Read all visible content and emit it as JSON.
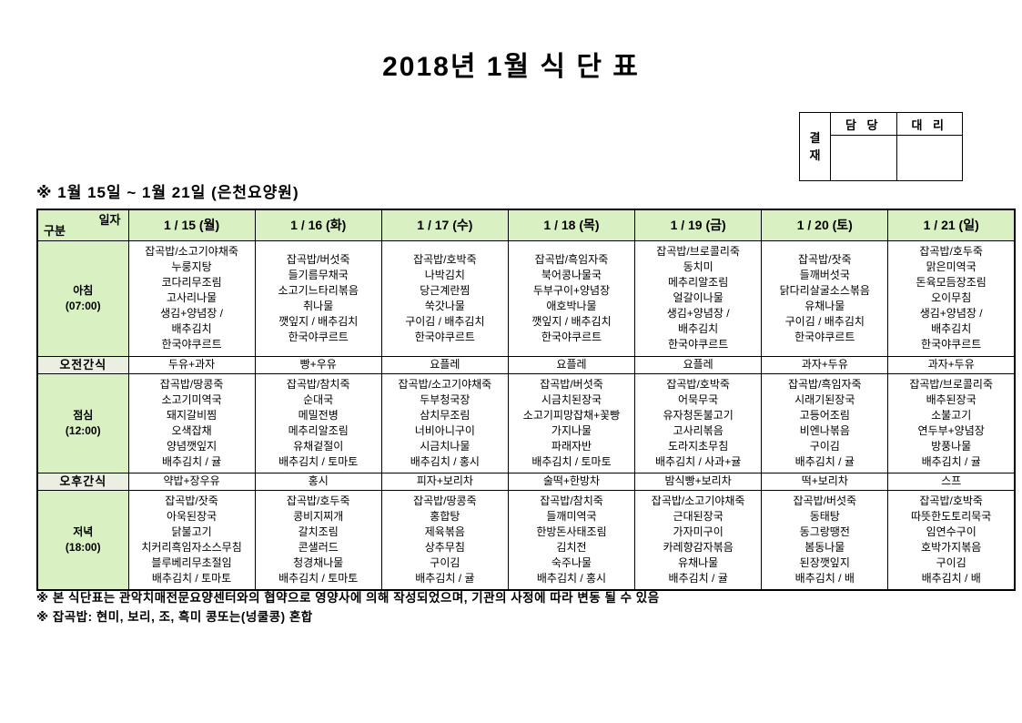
{
  "title": "2018년 1월 식 단 표",
  "approval": {
    "stamp": "결재",
    "columns": [
      "담 당",
      "대 리"
    ]
  },
  "subtitle": "※ 1월 15일 ~ 1월 21일 (은천요양원)",
  "table": {
    "corner": {
      "top": "일자",
      "bottom": "구분"
    },
    "days": [
      "1 / 15 (월)",
      "1 / 16 (화)",
      "1 / 17 (수)",
      "1 / 18 (목)",
      "1 / 19 (금)",
      "1 / 20 (토)",
      "1 / 21 (일)"
    ],
    "rows": [
      {
        "label": "아침",
        "time": "(07:00)",
        "cells": [
          "잡곡밥/소고기야채죽\n누룽지탕\n코다리무조림\n고사리나물\n생김+양념장 /\n배추김치\n한국야쿠르트",
          "잡곡밥/버섯죽\n들기름무채국\n소고기느타리볶음\n취나물\n깻잎지 / 배추김치\n한국야쿠르트",
          "잡곡밥/호박죽\n나박김치\n당근계란찜\n쑥갓나물\n구이김 / 배추김치\n한국야쿠르트",
          "잡곡밥/흑임자죽\n북어콩나물국\n두부구이+양념장\n애호박나물\n깻잎지 / 배추김치\n한국야쿠르트",
          "잡곡밥/브로콜리죽\n동치미\n메추리알조림\n얼갈이나물\n생김+양념장 /\n배추김치\n한국야쿠르트",
          "잡곡밥/잣죽\n들깨버섯국\n닭다리살굴소스볶음\n유채나물\n구이김 / 배추김치\n한국야쿠르트",
          "잡곡밥/호두죽\n맑은미역국\n돈육모듬장조림\n오이무침\n생김+양념장 /\n배추김치\n한국야쿠르트"
        ]
      },
      {
        "label": "오전간식",
        "cells": [
          "두유+과자",
          "빵+우유",
          "요플레",
          "요플레",
          "요플레",
          "과자+두유",
          "과자+두유"
        ]
      },
      {
        "label": "점심",
        "time": "(12:00)",
        "cells": [
          "잡곡밥/땅콩죽\n소고기미역국\n돼지갈비찜\n오색잡채\n양념깻잎지\n배추김치 / 귤",
          "잡곡밥/참치죽\n순대국\n메밀전병\n메추리알조림\n유채겉절이\n배추김치 / 토마토",
          "잡곡밥/소고기야채죽\n두부청국장\n삼치무조림\n너비아니구이\n시금치나물\n배추김치 / 홍시",
          "잡곡밥/버섯죽\n시금치된장국\n소고기피망잡채+꽃빵\n가지나물\n파래자반\n배추김치 / 토마토",
          "잡곡밥/호박죽\n어묵무국\n유자청돈불고기\n고사리볶음\n도라지초무침\n배추김치 / 사과+귤",
          "잡곡밥/흑임자죽\n시래기된장국\n고등어조림\n비엔나볶음\n구이김\n배추김치 / 귤",
          "잡곡밥/브로콜리죽\n배추된장국\n소불고기\n연두부+양념장\n방풍나물\n배추김치 / 귤"
        ]
      },
      {
        "label": "오후간식",
        "cells": [
          "약밥+장우유",
          "홍시",
          "피자+보리차",
          "술떡+한방차",
          "밤식빵+보리차",
          "떡+보리차",
          "스프"
        ]
      },
      {
        "label": "저녁",
        "time": "(18:00)",
        "cells": [
          "잡곡밥/잣죽\n아욱된장국\n닭불고기\n치커리흑임자소스무침\n블루베리무초절임\n배추김치 / 토마토",
          "잡곡밥/호두죽\n콩비지찌개\n갈치조림\n콘샐러드\n청경채나물\n배추김치 / 토마토",
          "잡곡밥/땅콩죽\n홍합탕\n제육볶음\n상추무침\n구이김\n배추김치 / 귤",
          "잡곡밥/참치죽\n들깨미역국\n한방돈사태조림\n김치전\n숙주나물\n배추김치 / 홍시",
          "잡곡밥/소고기야채죽\n근대된장국\n가자미구이\n카레향감자볶음\n유채나물\n배추김치 / 귤",
          "잡곡밥/버섯죽\n동태탕\n동그랑땡전\n봄동나물\n된장깻잎지\n배추김치 / 배",
          "잡곡밥/호박죽\n따뜻한도토리묵국\n임연수구이\n호박가지볶음\n구이김\n배추김치 / 배"
        ]
      }
    ]
  },
  "notes": [
    "※ 본 식단표는 관악치매전문요양센터와의 협약으로 영양사에 의해 작성되었으며, 기관의 사정에 따라 변동 될 수 있음",
    "※ 잡곡밥: 현미, 보리, 조, 흑미 콩또는(넝쿨콩) 혼합"
  ],
  "colors": {
    "header_green": "#d9f0c3",
    "snack_bg": "#eaefe2",
    "border": "#000000"
  }
}
